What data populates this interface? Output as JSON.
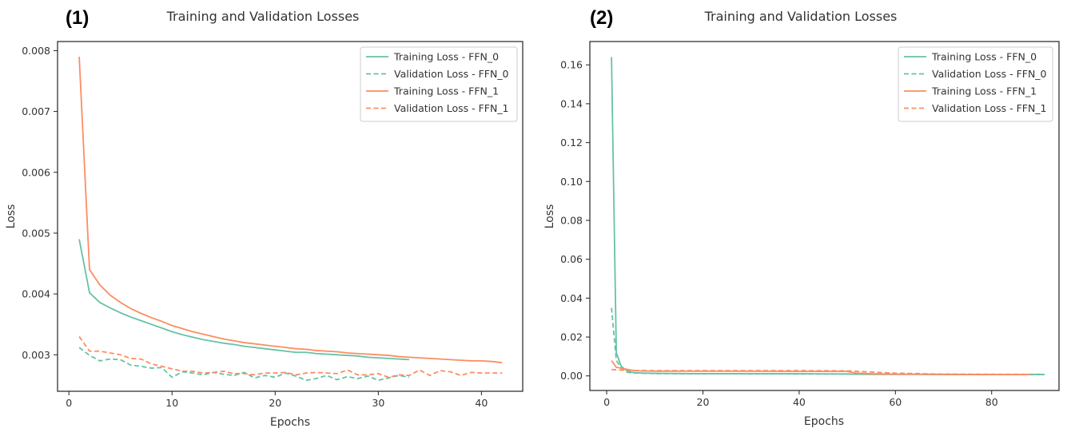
{
  "chart_data": [
    {
      "panel_label": "(1)",
      "type": "line",
      "title": "Training and Validation Losses",
      "xlabel": "Epochs",
      "ylabel": "Loss",
      "xlim": [
        -1.1,
        44
      ],
      "ylim": [
        0.0024,
        0.00815
      ],
      "xticks": [
        0,
        10,
        20,
        30,
        40
      ],
      "yticks": [
        0.003,
        0.004,
        0.005,
        0.006,
        0.007,
        0.008
      ],
      "ytick_labels": [
        "0.003",
        "0.004",
        "0.005",
        "0.006",
        "0.007",
        "0.008"
      ],
      "xtick_labels": [
        "0",
        "10",
        "20",
        "30",
        "40"
      ],
      "grid": false,
      "legend_position": "top-right",
      "series": [
        {
          "name": "Training Loss - FFN_0",
          "color": "#66c2a5",
          "dash": "solid",
          "x": [
            1,
            2,
            3,
            4,
            5,
            6,
            7,
            8,
            9,
            10,
            11,
            12,
            13,
            14,
            15,
            16,
            17,
            18,
            19,
            20,
            21,
            22,
            23,
            24,
            25,
            26,
            27,
            28,
            29,
            30,
            31,
            32,
            33
          ],
          "values": [
            0.0049,
            0.00402,
            0.00386,
            0.00377,
            0.00369,
            0.00362,
            0.00356,
            0.0035,
            0.00344,
            0.00338,
            0.00333,
            0.00329,
            0.00325,
            0.00322,
            0.00319,
            0.00317,
            0.00314,
            0.00312,
            0.0031,
            0.00308,
            0.00306,
            0.00304,
            0.00304,
            0.00302,
            0.00301,
            0.003,
            0.00299,
            0.00298,
            0.00296,
            0.00295,
            0.00294,
            0.00293,
            0.00292
          ]
        },
        {
          "name": "Validation Loss - FFN_0",
          "color": "#66c2a5",
          "dash": "dashed",
          "x": [
            1,
            2,
            3,
            4,
            5,
            6,
            7,
            8,
            9,
            10,
            11,
            12,
            13,
            14,
            15,
            16,
            17,
            18,
            19,
            20,
            21,
            22,
            23,
            24,
            25,
            26,
            27,
            28,
            29,
            30,
            31,
            32,
            33
          ],
          "values": [
            0.00312,
            0.00299,
            0.0029,
            0.00293,
            0.00292,
            0.00283,
            0.00281,
            0.00278,
            0.00279,
            0.00263,
            0.00272,
            0.0027,
            0.00267,
            0.00271,
            0.00268,
            0.00266,
            0.00271,
            0.00262,
            0.00266,
            0.00263,
            0.0027,
            0.00265,
            0.00258,
            0.00261,
            0.00266,
            0.00259,
            0.00264,
            0.00261,
            0.00265,
            0.00258,
            0.00262,
            0.00266,
            0.00263
          ]
        },
        {
          "name": "Training Loss - FFN_1",
          "color": "#fc8d62",
          "dash": "solid",
          "x": [
            1,
            2,
            3,
            4,
            5,
            6,
            7,
            8,
            9,
            10,
            11,
            12,
            13,
            14,
            15,
            16,
            17,
            18,
            19,
            20,
            21,
            22,
            23,
            24,
            25,
            26,
            27,
            28,
            29,
            30,
            31,
            32,
            33,
            34,
            35,
            36,
            37,
            38,
            39,
            40,
            41,
            42
          ],
          "values": [
            0.0079,
            0.0044,
            0.00415,
            0.00398,
            0.00386,
            0.00376,
            0.00368,
            0.00361,
            0.00355,
            0.00348,
            0.00343,
            0.00338,
            0.00334,
            0.0033,
            0.00326,
            0.00323,
            0.0032,
            0.00318,
            0.00316,
            0.00314,
            0.00312,
            0.0031,
            0.00309,
            0.00307,
            0.00306,
            0.00305,
            0.00303,
            0.00302,
            0.00301,
            0.003,
            0.00299,
            0.00297,
            0.00296,
            0.00295,
            0.00294,
            0.00293,
            0.00292,
            0.00291,
            0.0029,
            0.0029,
            0.00289,
            0.00287
          ]
        },
        {
          "name": "Validation Loss - FFN_1",
          "color": "#fc8d62",
          "dash": "dashed",
          "x": [
            1,
            2,
            3,
            4,
            5,
            6,
            7,
            8,
            9,
            10,
            11,
            12,
            13,
            14,
            15,
            16,
            17,
            18,
            19,
            20,
            21,
            22,
            23,
            24,
            25,
            26,
            27,
            28,
            29,
            30,
            31,
            32,
            33,
            34,
            35,
            36,
            37,
            38,
            39,
            40,
            41,
            42
          ],
          "values": [
            0.0033,
            0.00306,
            0.00306,
            0.00303,
            0.003,
            0.00294,
            0.00293,
            0.00285,
            0.00281,
            0.00277,
            0.00273,
            0.00273,
            0.0027,
            0.00271,
            0.00273,
            0.00269,
            0.00269,
            0.00267,
            0.0027,
            0.0027,
            0.00271,
            0.00267,
            0.0027,
            0.00271,
            0.0027,
            0.00269,
            0.00275,
            0.00267,
            0.00267,
            0.00269,
            0.00263,
            0.00267,
            0.00266,
            0.00275,
            0.00266,
            0.00274,
            0.00272,
            0.00266,
            0.00271,
            0.0027,
            0.0027,
            0.0027
          ]
        }
      ]
    },
    {
      "panel_label": "(2)",
      "type": "line",
      "title": "Training and Validation Losses",
      "xlabel": "Epochs",
      "ylabel": "Loss",
      "xlim": [
        -3.5,
        94
      ],
      "ylim": [
        -0.0075,
        0.172
      ],
      "xticks": [
        0,
        20,
        40,
        60,
        80
      ],
      "yticks": [
        0.0,
        0.02,
        0.04,
        0.06,
        0.08,
        0.1,
        0.12,
        0.14,
        0.16
      ],
      "ytick_labels": [
        "0.00",
        "0.02",
        "0.04",
        "0.06",
        "0.08",
        "0.10",
        "0.12",
        "0.14",
        "0.16"
      ],
      "xtick_labels": [
        "0",
        "20",
        "40",
        "60",
        "80"
      ],
      "grid": false,
      "legend_position": "top-right",
      "series": [
        {
          "name": "Training Loss - FFN_0",
          "color": "#66c2a5",
          "dash": "solid",
          "x": [
            1,
            2,
            3,
            4,
            5,
            6,
            8,
            10,
            15,
            20,
            30,
            40,
            49,
            50,
            51,
            55,
            60,
            70,
            80,
            91
          ],
          "values": [
            0.164,
            0.012,
            0.005,
            0.003,
            0.002,
            0.0016,
            0.0014,
            0.0013,
            0.0012,
            0.0011,
            0.0011,
            0.0011,
            0.001,
            0.001,
            0.0009,
            0.0008,
            0.0008,
            0.0007,
            0.0007,
            0.0007
          ]
        },
        {
          "name": "Validation Loss - FFN_0",
          "color": "#66c2a5",
          "dash": "dashed",
          "x": [
            1,
            2,
            3,
            4,
            5,
            6,
            10,
            20,
            40,
            60,
            80,
            91
          ],
          "values": [
            0.035,
            0.008,
            0.004,
            0.002,
            0.0016,
            0.0015,
            0.0012,
            0.0011,
            0.001,
            0.0009,
            0.0008,
            0.0008
          ]
        },
        {
          "name": "Training Loss - FFN_1",
          "color": "#fc8d62",
          "dash": "solid",
          "x": [
            1,
            2,
            3,
            4,
            5,
            6,
            10,
            20,
            30,
            40,
            49,
            50,
            51,
            52,
            55,
            60,
            70,
            80,
            88
          ],
          "values": [
            0.0079,
            0.0044,
            0.004,
            0.0035,
            0.003,
            0.0026,
            0.0024,
            0.0024,
            0.0024,
            0.0023,
            0.0023,
            0.0023,
            0.0018,
            0.0014,
            0.0011,
            0.0009,
            0.0008,
            0.0007,
            0.0007
          ]
        },
        {
          "name": "Validation Loss - FFN_1",
          "color": "#fc8d62",
          "dash": "dashed",
          "x": [
            1,
            2,
            3,
            4,
            5,
            6,
            10,
            20,
            40,
            50,
            60,
            70,
            80,
            88
          ],
          "values": [
            0.0033,
            0.0031,
            0.003,
            0.003,
            0.0029,
            0.0028,
            0.0027,
            0.0027,
            0.0027,
            0.0026,
            0.0014,
            0.0009,
            0.0008,
            0.0007
          ]
        }
      ]
    }
  ]
}
